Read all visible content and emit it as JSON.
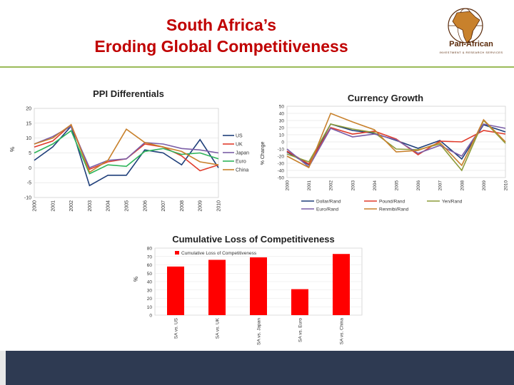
{
  "slide": {
    "title_line1": "South Africa’s",
    "title_line2": "Eroding Global Competitiveness",
    "logo_name": "Pan-African",
    "logo_sub": "INVESTMENT & RESEARCH SERVICES"
  },
  "colors": {
    "title": "#c00000",
    "divider": "#9bbb59",
    "footer": "#2e3a52"
  },
  "chart_data": [
    {
      "type": "line",
      "title": "PPI Differentials",
      "xlabel": "",
      "ylabel": "%",
      "ylim": [
        -10,
        20
      ],
      "yticks": [
        -10,
        -5,
        0,
        5,
        10,
        15,
        20
      ],
      "x": [
        "2000",
        "2001",
        "2002",
        "2003",
        "2004",
        "2005",
        "2006",
        "2007",
        "2008",
        "2009",
        "2010"
      ],
      "legend_position": "right",
      "series": [
        {
          "name": "US",
          "color": "#1f3f7a",
          "values": [
            2.5,
            7,
            14,
            -6,
            -2.5,
            -2.5,
            6,
            5,
            1,
            9.5,
            0
          ]
        },
        {
          "name": "UK",
          "color": "#e03c2c",
          "values": [
            7,
            9,
            14.5,
            -0.5,
            2,
            3,
            8,
            7,
            4,
            -1,
            1
          ]
        },
        {
          "name": "Japan",
          "color": "#7b5ea7",
          "values": [
            8,
            10.5,
            14,
            0,
            2.5,
            3,
            8.5,
            8,
            6.5,
            6,
            5
          ]
        },
        {
          "name": "Euro",
          "color": "#2fb55a",
          "values": [
            5,
            8,
            12.5,
            -2,
            1,
            0.5,
            5.5,
            6.5,
            4.5,
            5,
            3
          ]
        },
        {
          "name": "China",
          "color": "#c8812c",
          "values": [
            8,
            10,
            14.5,
            -1.5,
            2.5,
            13,
            8.5,
            7,
            5.5,
            2,
            1
          ]
        }
      ]
    },
    {
      "type": "line",
      "title": "Currency Growth",
      "xlabel": "",
      "ylabel": "% Change",
      "ylim": [
        -50,
        50
      ],
      "yticks": [
        -50,
        -40,
        -30,
        -20,
        -10,
        0,
        10,
        20,
        30,
        40,
        50
      ],
      "x": [
        "2000",
        "2001",
        "2002",
        "2003",
        "2004",
        "2005",
        "2006",
        "2007",
        "2008",
        "2009",
        "2010"
      ],
      "legend_position": "bottom",
      "series": [
        {
          "name": "Dollar/Rand",
          "color": "#1f3f7a",
          "values": [
            -14,
            -32,
            25,
            16,
            12,
            2,
            -9,
            2,
            -24,
            24,
            14
          ]
        },
        {
          "name": "Pound/Rand",
          "color": "#e03c2c",
          "values": [
            -13,
            -31,
            20,
            11,
            15,
            4,
            -18,
            1,
            0,
            16,
            11
          ]
        },
        {
          "name": "Yen/Rand",
          "color": "#8c9b3a",
          "values": [
            -17,
            -28,
            25,
            18,
            13,
            -10,
            -11,
            -3,
            -40,
            30,
            -2
          ]
        },
        {
          "name": "Euro/Rand",
          "color": "#7b5ea7",
          "values": [
            -10,
            -35,
            19,
            7,
            11,
            3,
            -16,
            -5,
            -20,
            25,
            19
          ]
        },
        {
          "name": "Renmibi/Rand",
          "color": "#c8812c",
          "values": [
            -20,
            -36,
            40,
            28,
            17,
            -14,
            -12,
            -1,
            -33,
            31,
            0
          ]
        }
      ]
    },
    {
      "type": "bar",
      "title": "Cumulative Loss of Competitiveness",
      "xlabel": "",
      "ylabel": "%",
      "ylim": [
        0,
        80
      ],
      "yticks": [
        0,
        10,
        20,
        30,
        40,
        50,
        60,
        70,
        80
      ],
      "categories": [
        "SA vs. US",
        "SA vs. UK",
        "SA vs. Japan",
        "SA vs. Euro",
        "SA vs. China"
      ],
      "legend_position": "top-left",
      "series": [
        {
          "name": "Cumulative Loss of Competitiveness",
          "color": "#ff0000",
          "values": [
            58,
            66,
            69,
            31,
            73
          ]
        }
      ]
    }
  ]
}
